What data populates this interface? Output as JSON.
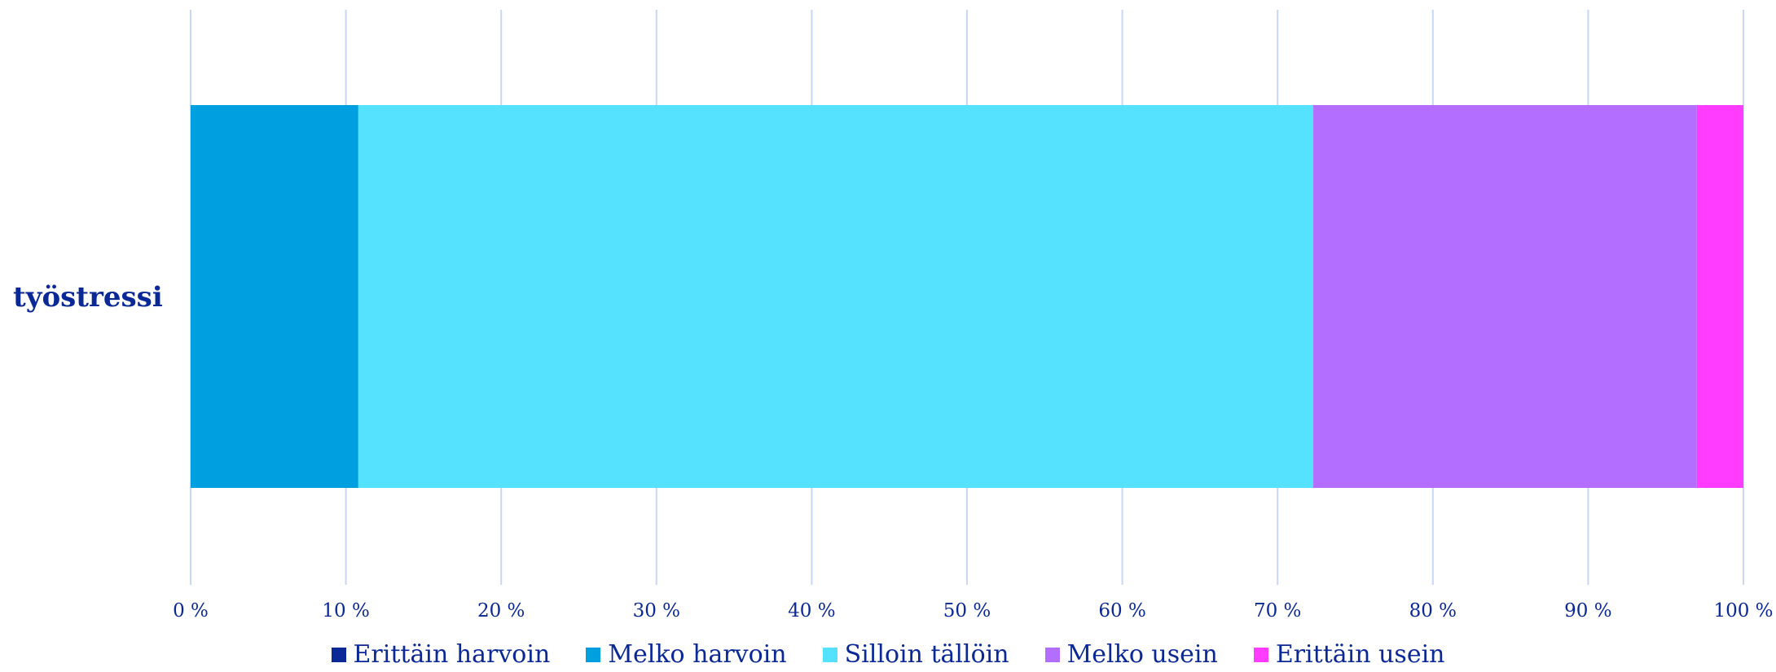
{
  "chart_data": {
    "type": "bar",
    "orientation": "horizontal",
    "stacked": true,
    "categories": [
      "työstressi"
    ],
    "series": [
      {
        "name": "Erittäin harvoin",
        "values": [
          0
        ],
        "color": "#0a2896"
      },
      {
        "name": "Melko harvoin",
        "values": [
          10.8
        ],
        "color": "#009fe0"
      },
      {
        "name": "Silloin tällöin",
        "values": [
          61.5
        ],
        "color": "#55e2ff"
      },
      {
        "name": "Melko usein",
        "values": [
          24.7
        ],
        "color": "#b46eff"
      },
      {
        "name": "Erittäin usein",
        "values": [
          3.0
        ],
        "color": "#ff3cff"
      }
    ],
    "xlim": [
      0,
      100
    ],
    "ticks": [
      0,
      10,
      20,
      30,
      40,
      50,
      60,
      70,
      80,
      90,
      100
    ],
    "tick_labels": [
      "0 %",
      "10 %",
      "20 %",
      "30 %",
      "40 %",
      "50 %",
      "60 %",
      "70 %",
      "80 %",
      "90 %",
      "100 %"
    ],
    "grid": true,
    "grid_color": "#c9d6f5",
    "text_color": "#0a2896",
    "legend_position": "bottom"
  }
}
